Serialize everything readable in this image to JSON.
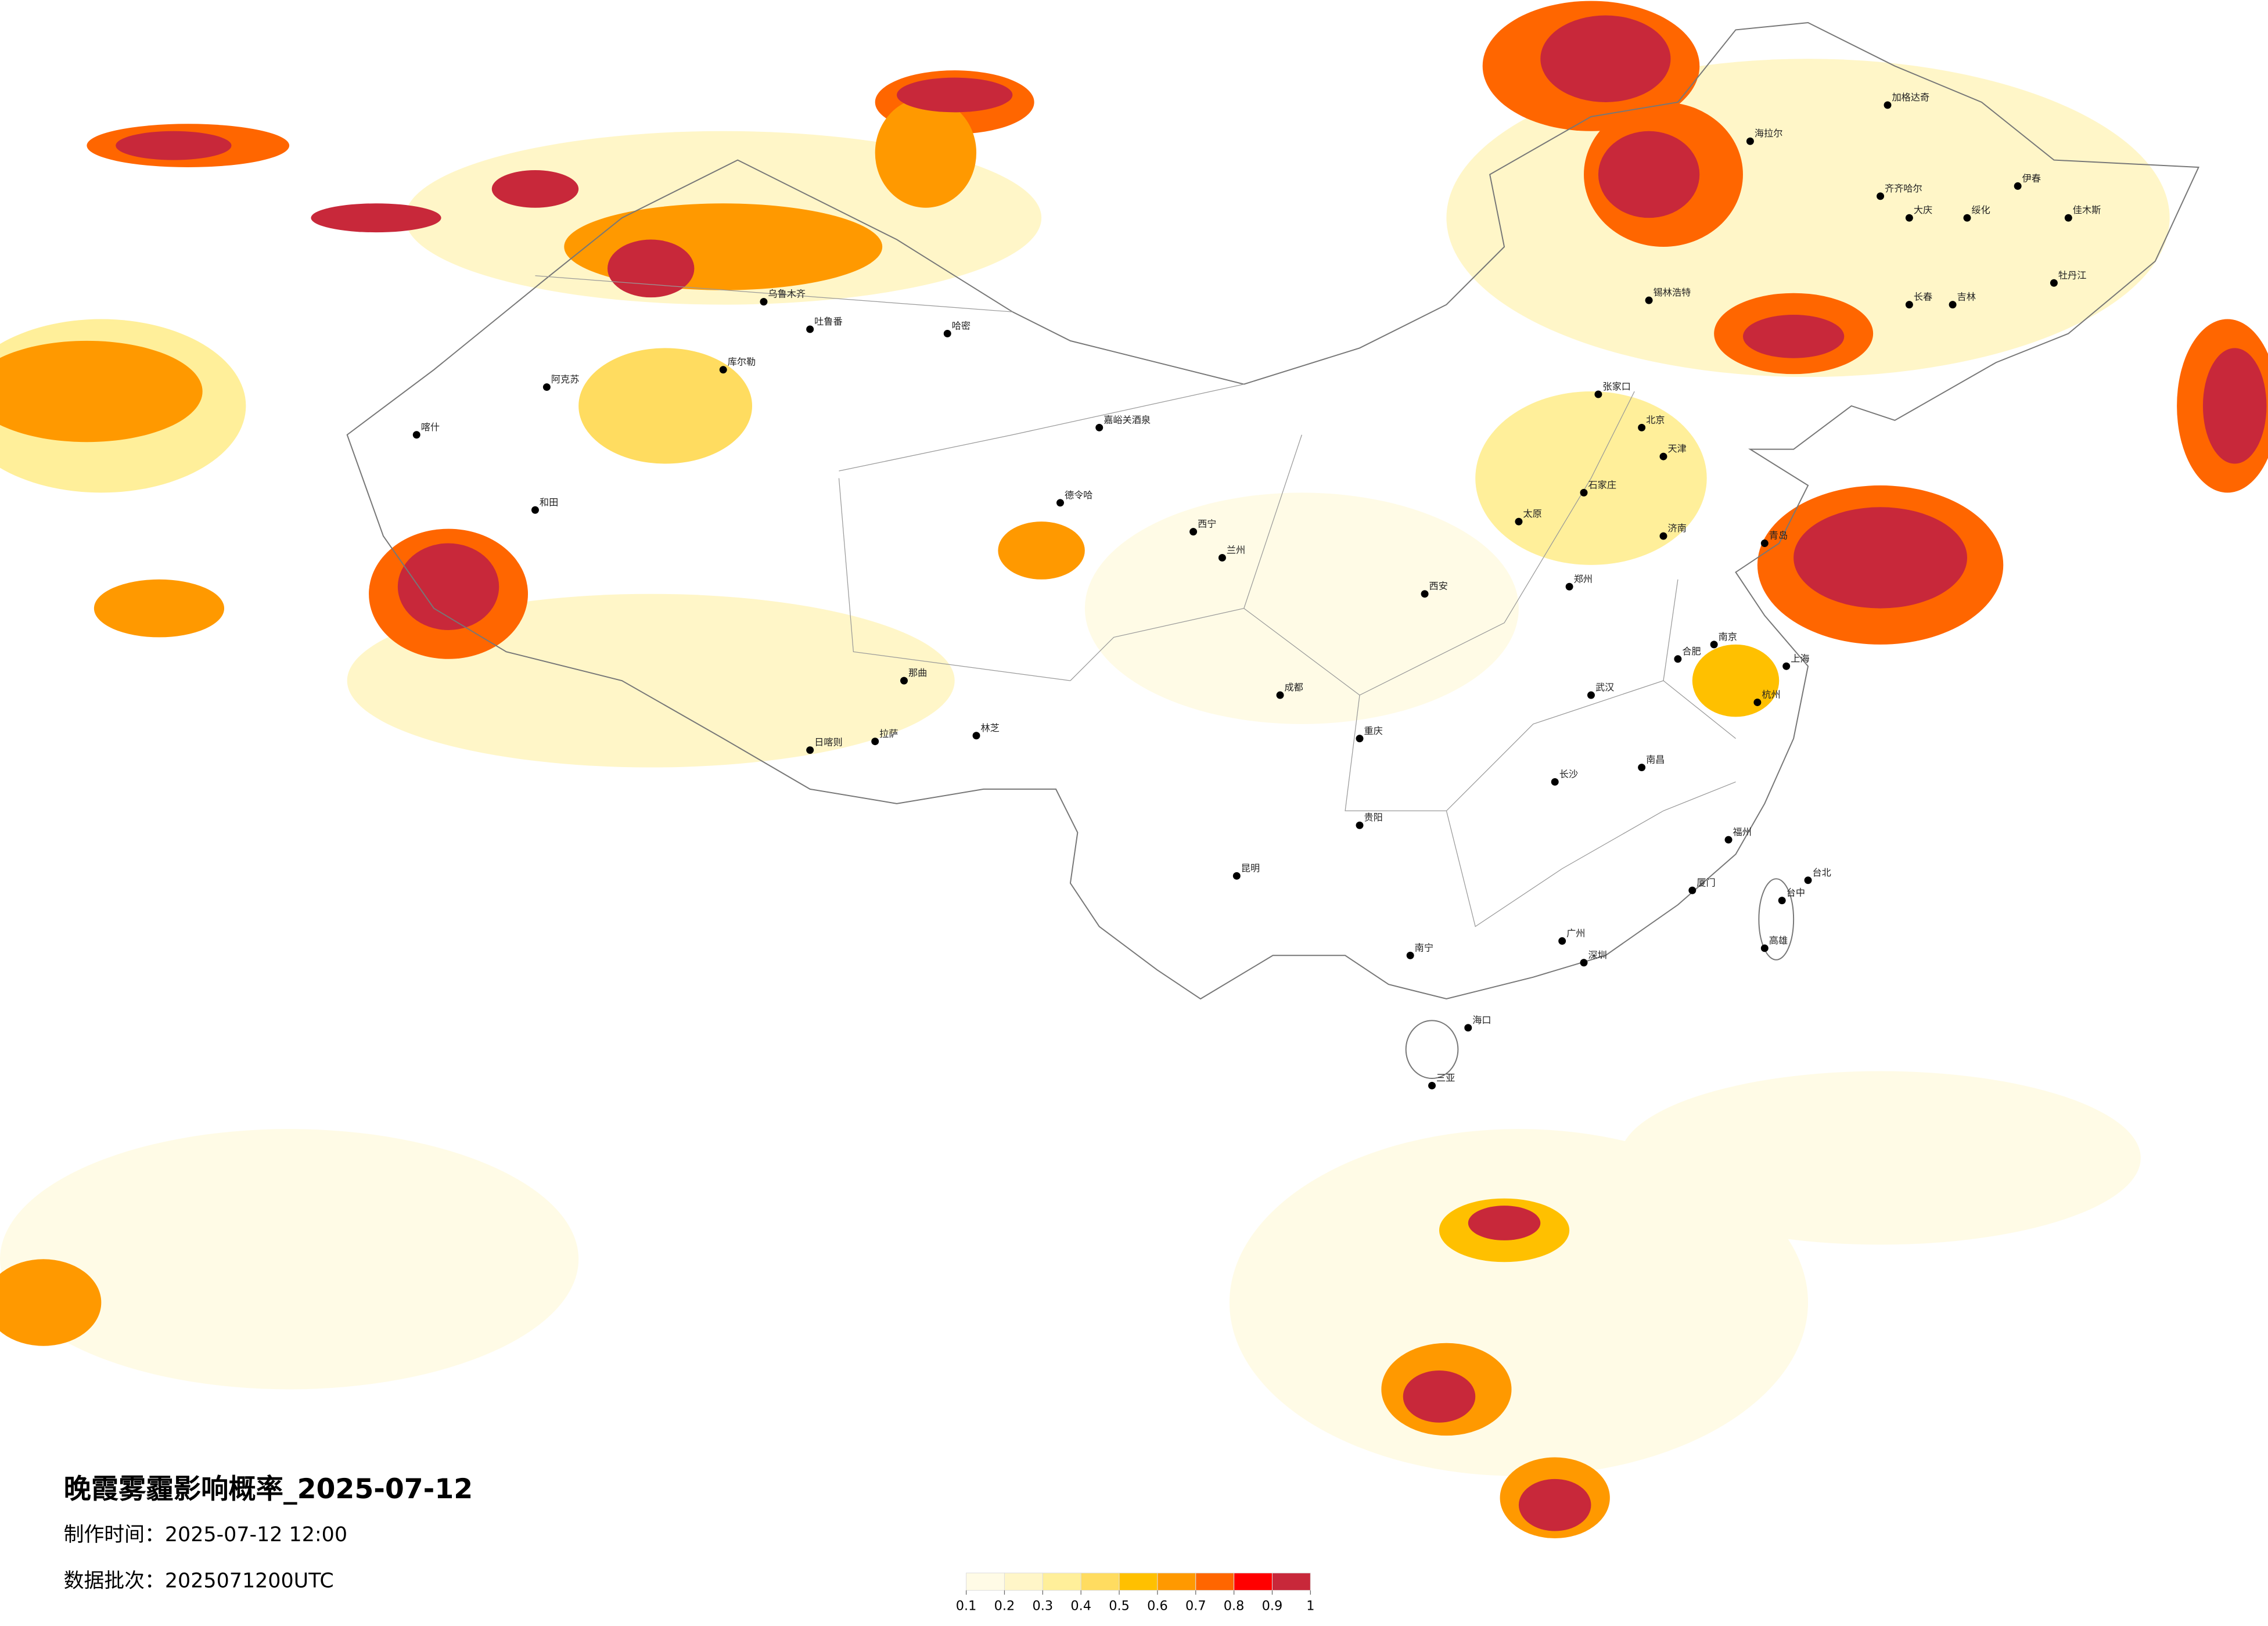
{
  "title": "晚霞雾霾影响概率_2025-07-12",
  "made_time": "制作时间：2025-07-12 12:00",
  "batch": "数据批次：2025071200UTC",
  "legend": {
    "ticks": [
      0.1,
      0.2,
      0.3,
      0.4,
      0.5,
      0.6,
      0.7,
      0.8,
      0.9,
      1
    ],
    "colors": [
      "#fffbe6",
      "#fff6c8",
      "#ffef9a",
      "#ffdc60",
      "#ffc000",
      "#ff9900",
      "#ff6600",
      "#ff0000",
      "#c8283a"
    ]
  },
  "cities": [
    "乌鲁木齐",
    "吐鲁番",
    "哈密",
    "库尔勒",
    "阿克苏",
    "喀什",
    "和田",
    "嘉峪关酒泉",
    "德令哈",
    "西宁",
    "兰州",
    "日喀则",
    "拉萨",
    "林芝",
    "那曲",
    "海拉尔",
    "加格达奇",
    "齐齐哈尔",
    "大庆",
    "绥化",
    "伊春",
    "佳木斯",
    "牡丹江",
    "长春",
    "吉林",
    "锡林浩特",
    "张家口",
    "北京",
    "天津",
    "石家庄",
    "太原",
    "济南",
    "青岛",
    "郑州",
    "西安",
    "武汉",
    "南京",
    "上海",
    "杭州",
    "合肥",
    "南昌",
    "长沙",
    "福州",
    "厦门",
    "广州",
    "深圳",
    "南宁",
    "海口",
    "三亚",
    "昆明",
    "贵阳",
    "成都",
    "重庆",
    "台北",
    "台中",
    "高雄"
  ]
}
